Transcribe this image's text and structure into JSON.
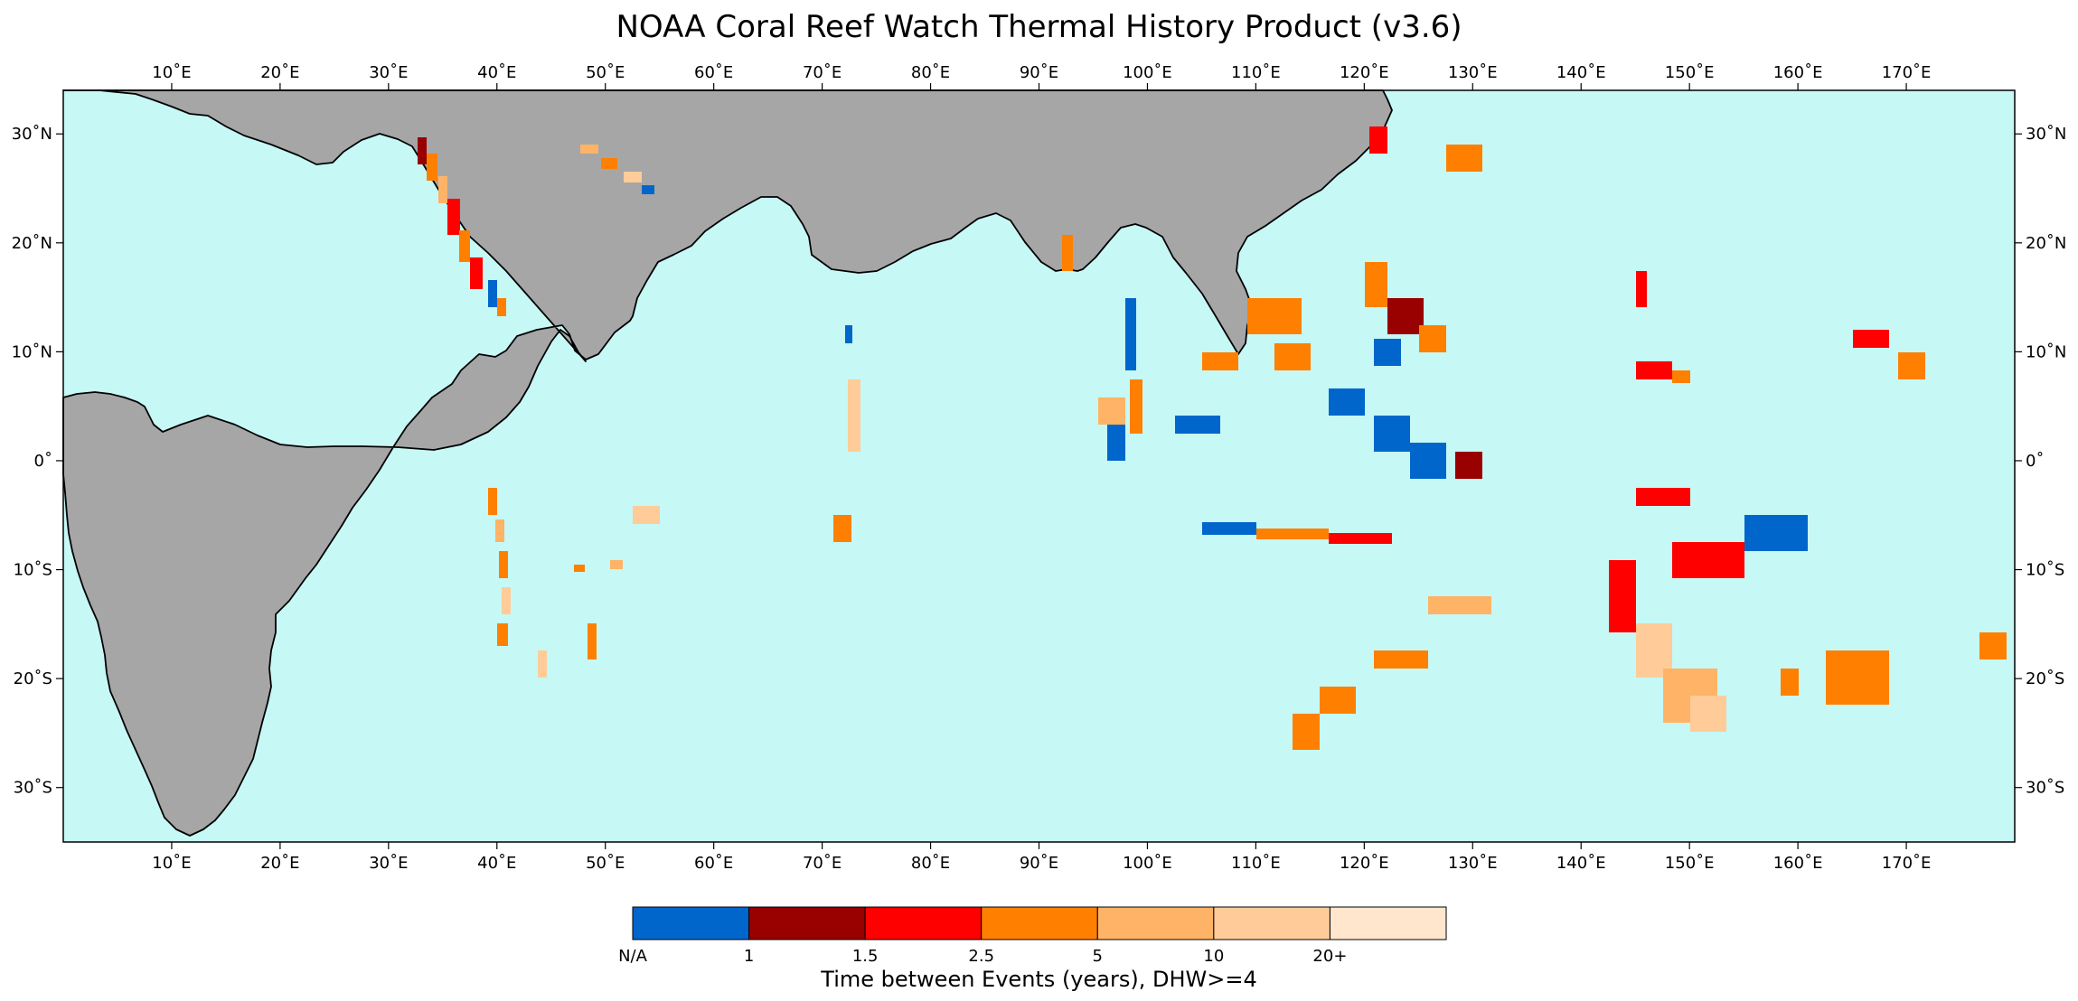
{
  "title": "NOAA Coral Reef Watch Thermal History Product (v3.6)",
  "map": {
    "ocean_color": "#c6f8f6",
    "land_color": "#a6a6a6",
    "coast_color": "#000000",
    "extent": {
      "lon": [
        0,
        180
      ],
      "lat": [
        -35,
        34
      ]
    },
    "lon_ticks": [
      "10˚E",
      "20˚E",
      "30˚E",
      "40˚E",
      "50˚E",
      "60˚E",
      "70˚E",
      "80˚E",
      "90˚E",
      "100˚E",
      "110˚E",
      "120˚E",
      "130˚E",
      "140˚E",
      "150˚E",
      "160˚E",
      "170˚E"
    ],
    "lat_ticks": [
      "30˚N",
      "20˚N",
      "10˚N",
      "0˚",
      "10˚S",
      "20˚S",
      "30˚S"
    ]
  },
  "colorbar": {
    "title": "Time between Events (years), DHW>=4",
    "colors": [
      "#0066cc",
      "#990000",
      "#ff0000",
      "#ff8000",
      "#ffb366",
      "#ffcc99",
      "#ffe6cc"
    ],
    "labels": [
      "N/A",
      "1",
      "1.5",
      "2.5",
      "5",
      "10",
      "20+"
    ]
  }
}
